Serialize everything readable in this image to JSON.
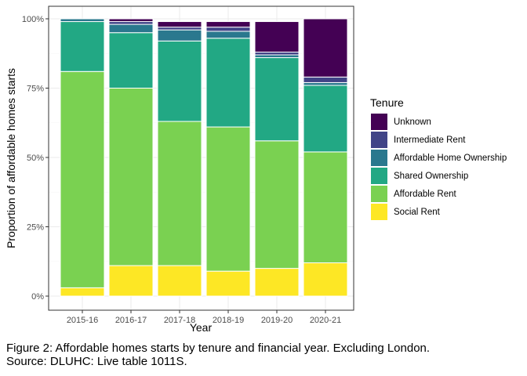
{
  "chart_data": {
    "type": "bar",
    "stacked": true,
    "xlabel": "Year",
    "ylabel": "Proportion of affordable homes starts",
    "ylim": [
      0,
      1
    ],
    "yticks": [
      {
        "value": 0,
        "label": "0%"
      },
      {
        "value": 0.25,
        "label": "25%"
      },
      {
        "value": 0.5,
        "label": "50%"
      },
      {
        "value": 0.75,
        "label": "75%"
      },
      {
        "value": 1,
        "label": "100%"
      }
    ],
    "grid": true,
    "legend_position": "right",
    "legend_title": "Tenure",
    "categories": [
      "2015-16",
      "2016-17",
      "2017-18",
      "2018-19",
      "2019-20",
      "2020-21"
    ],
    "series": [
      {
        "name": "Social Rent",
        "color": "#FDE725",
        "values": [
          0.03,
          0.11,
          0.11,
          0.09,
          0.1,
          0.12
        ]
      },
      {
        "name": "Affordable Rent",
        "color": "#7AD151",
        "values": [
          0.78,
          0.64,
          0.52,
          0.52,
          0.46,
          0.4
        ]
      },
      {
        "name": "Shared Ownership",
        "color": "#22A884",
        "values": [
          0.18,
          0.2,
          0.29,
          0.32,
          0.3,
          0.24
        ]
      },
      {
        "name": "Affordable Home Ownership",
        "color": "#2A788E",
        "values": [
          0.01,
          0.03,
          0.04,
          0.025,
          0.01,
          0.01
        ]
      },
      {
        "name": "Intermediate Rent",
        "color": "#414487",
        "values": [
          0.0,
          0.01,
          0.01,
          0.015,
          0.01,
          0.02
        ]
      },
      {
        "name": "Unknown",
        "color": "#440154",
        "values": [
          0.0,
          0.01,
          0.02,
          0.02,
          0.11,
          0.21
        ]
      }
    ]
  },
  "caption": {
    "line1": "Figure 2: Affordable homes starts by tenure and financial year. Excluding London.",
    "line2": "Source: DLUHC: Live table 1011S."
  }
}
